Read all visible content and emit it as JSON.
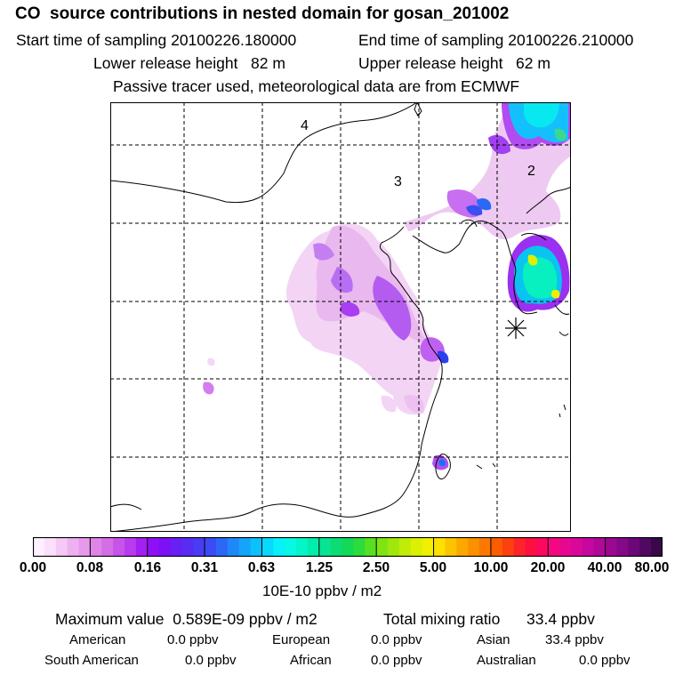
{
  "header": {
    "title": "CO  source contributions in nested domain for gosan_201002",
    "start_label": "Start time of sampling 20100226.180000",
    "end_label": "End time of sampling 20100226.210000",
    "lower_label": "Lower release height   82 m",
    "upper_label": "Upper release height   62 m",
    "tracer_note": "Passive tracer used, meteorological data are from ECMWF"
  },
  "map": {
    "region_labels": [
      "4",
      "3",
      "2"
    ],
    "receptor_marker": "gosan-star"
  },
  "colorbar": {
    "labels": [
      "0.00",
      "0.08",
      "0.16",
      "0.31",
      "0.63",
      "1.25",
      "2.50",
      "5.00",
      "10.00",
      "20.00",
      "40.00",
      "80.00"
    ],
    "colors": [
      "#fff0ff",
      "#fbe0fb",
      "#f6c8f6",
      "#efb0f0",
      "#e79aec",
      "#df85e8",
      "#d46ee6",
      "#c654e8",
      "#b83bee",
      "#a41ff2",
      "#9010f6",
      "#7d10f6",
      "#6820f4",
      "#5a2cf2",
      "#4a3cf2",
      "#3c4cf4",
      "#2c68f6",
      "#1f88f8",
      "#14a4fa",
      "#0cc0fc",
      "#0ad8fc",
      "#08f0fa",
      "#08f8e4",
      "#06f4c8",
      "#04ecac",
      "#06e494",
      "#0cdc74",
      "#14d858",
      "#2cdc3c",
      "#58e020",
      "#80e414",
      "#a0e80c",
      "#c0ec08",
      "#dcf004",
      "#f0f000",
      "#fce000",
      "#fcc400",
      "#fca800",
      "#fc9000",
      "#fc7800",
      "#fc5c00",
      "#fc4010",
      "#fc2428",
      "#fc1040",
      "#fc0860",
      "#f40880",
      "#e80890",
      "#d80898",
      "#c408a0",
      "#b00898",
      "#9c0890",
      "#840888",
      "#6c0878",
      "#500860",
      "#380848"
    ]
  },
  "units_label": "10E-10 ppbv / m2",
  "summary": {
    "max_label": "Maximum value  0.589E-09 ppbv / m2",
    "total_label": "Total mixing ratio",
    "total_value": "33.4 ppbv",
    "contributions": [
      {
        "region": "American",
        "value": "0.0 ppbv"
      },
      {
        "region": "European",
        "value": "0.0 ppbv"
      },
      {
        "region": "Asian",
        "value": "33.4 ppbv"
      },
      {
        "region": "South American",
        "value": "0.0 ppbv"
      },
      {
        "region": "African",
        "value": "0.0 ppbv"
      },
      {
        "region": "Australian",
        "value": "0.0 ppbv"
      }
    ]
  }
}
